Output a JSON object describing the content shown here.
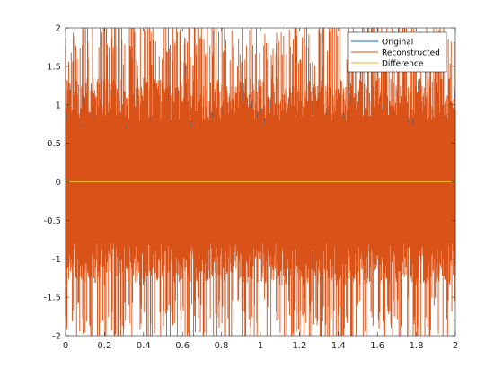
{
  "chart_data": {
    "type": "line",
    "title": "",
    "xlabel": "",
    "ylabel": "",
    "xlim": [
      0,
      2
    ],
    "ylim": [
      -2,
      2
    ],
    "x_ticks": [
      0,
      0.2,
      0.4,
      0.6,
      0.8,
      1,
      1.2,
      1.4,
      1.6,
      1.8,
      2
    ],
    "x_tick_labels": [
      "0",
      "0.2",
      "0.4",
      "0.6",
      "0.8",
      "1",
      "1.2",
      "1.4",
      "1.6",
      "1.8",
      "2"
    ],
    "y_ticks": [
      -2,
      -1.5,
      -1,
      -0.5,
      0,
      0.5,
      1,
      1.5,
      2
    ],
    "y_tick_labels": [
      "-2",
      "-1.5",
      "-1",
      "-0.5",
      "0",
      "0.5",
      "1",
      "1.5",
      "2"
    ],
    "grid": false,
    "legend_position": "top-right",
    "series": [
      {
        "name": "Original",
        "color": "#0072bd",
        "envelope_max": 2,
        "envelope_min": -2
      },
      {
        "name": "Reconstructed",
        "color": "#d95319",
        "envelope_max": 2,
        "envelope_min": -2
      },
      {
        "name": "Difference",
        "color": "#edb120",
        "value": 0
      }
    ]
  }
}
